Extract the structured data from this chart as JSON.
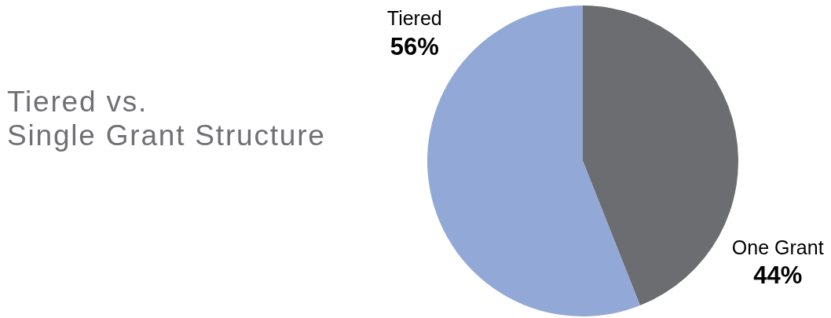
{
  "chart_data": {
    "type": "pie",
    "title": "Tiered vs.\nSingle Grant Structure",
    "categories": [
      "One Grant",
      "Tiered"
    ],
    "values": [
      44,
      56
    ],
    "colors": [
      "#6c6d71",
      "#92a8d6"
    ],
    "value_labels": [
      "44%",
      "56%"
    ]
  }
}
